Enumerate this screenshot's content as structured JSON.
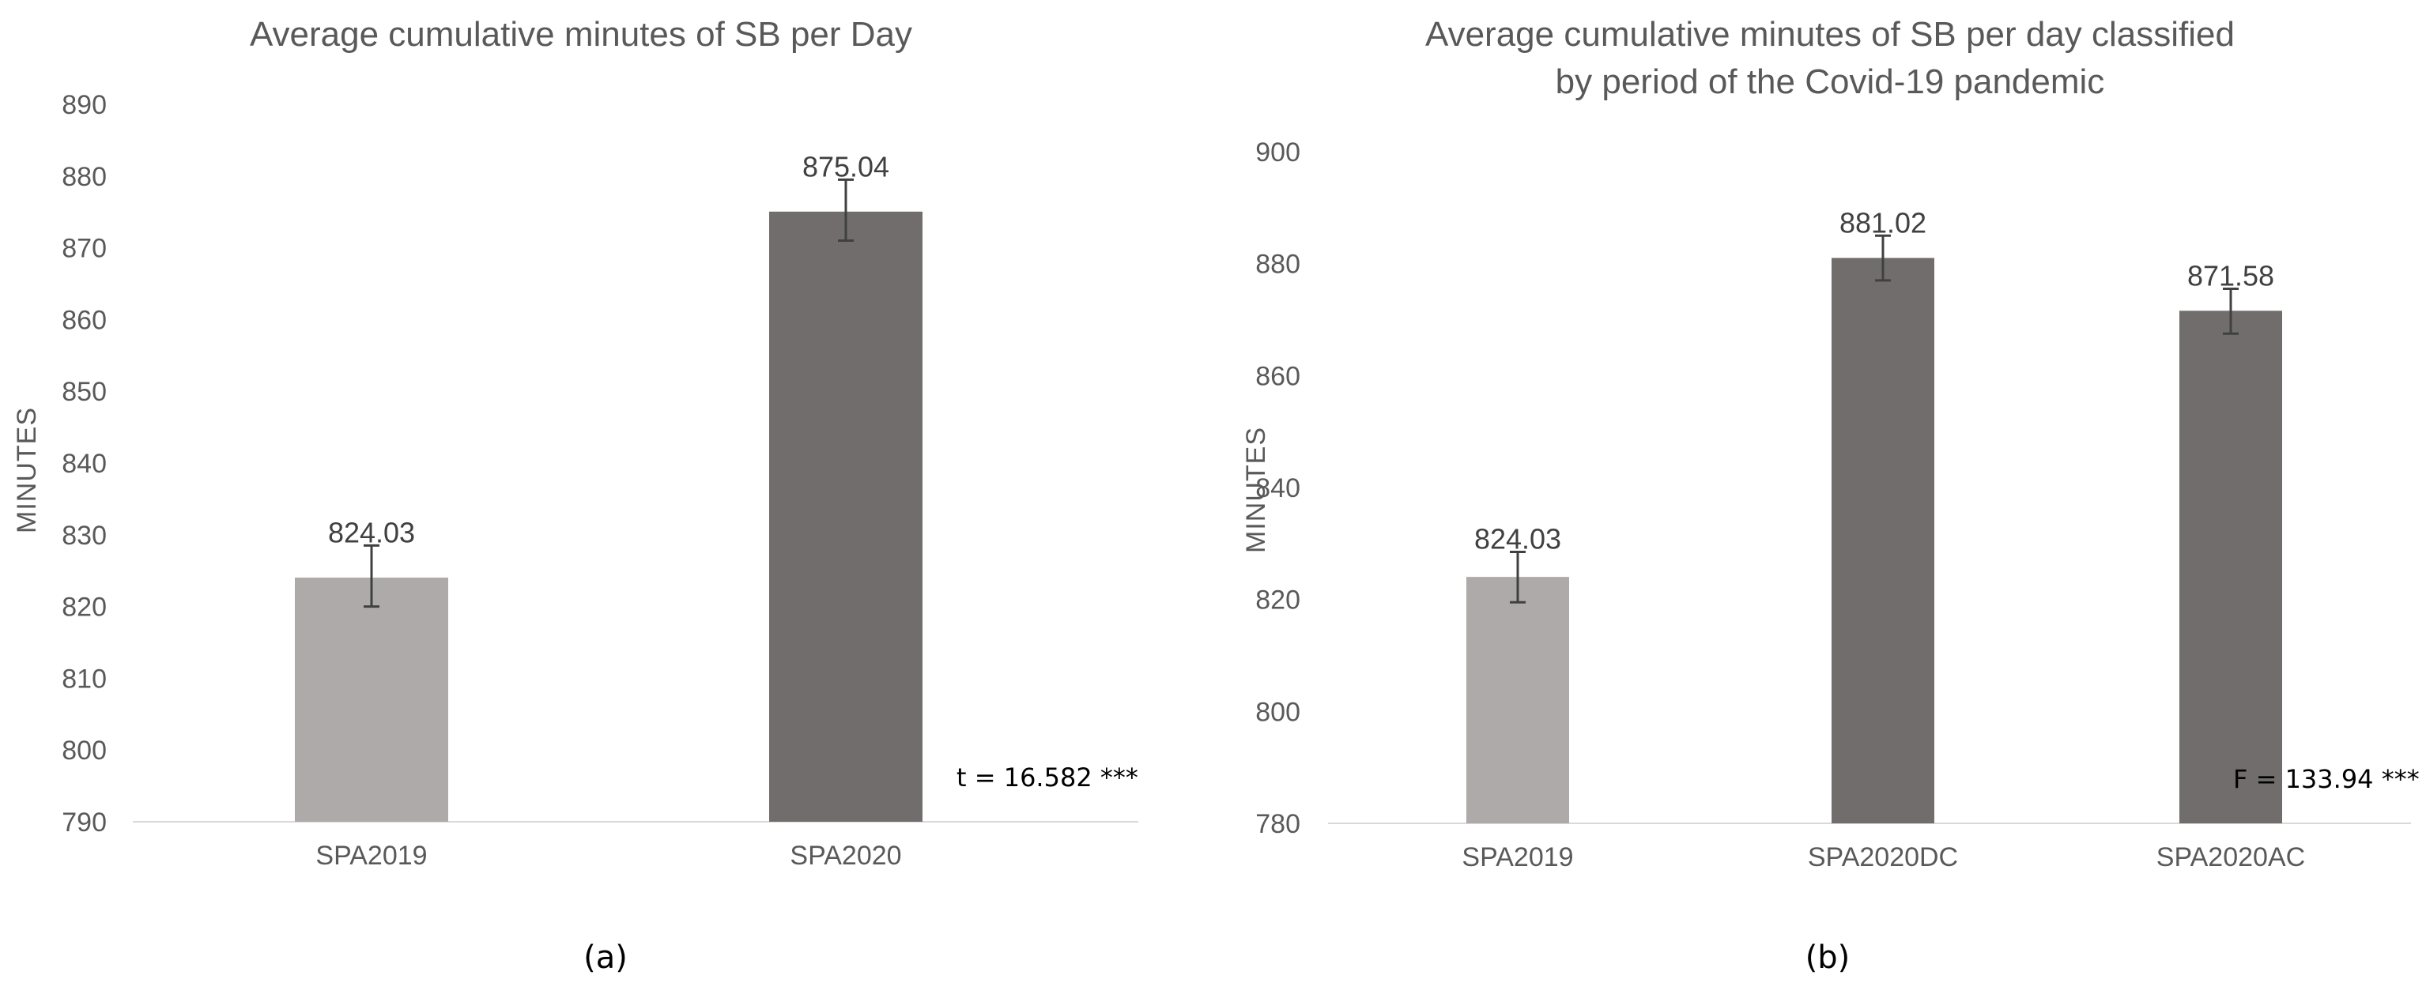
{
  "chart_data": [
    {
      "type": "bar",
      "title": "Average cumulative minutes of SB per Day",
      "ylabel": "MINUTES",
      "xlabel": "",
      "ylim": [
        790,
        890
      ],
      "yticks": [
        790,
        800,
        810,
        820,
        830,
        840,
        850,
        860,
        870,
        880,
        890
      ],
      "categories": [
        "SPA2019",
        "SPA2020"
      ],
      "values": [
        824.03,
        875.04
      ],
      "value_labels": [
        "824.03",
        "875.04"
      ],
      "error_low": [
        820.0,
        871.0
      ],
      "error_high": [
        828.5,
        879.5
      ],
      "bar_colors": [
        "#aeaaaa",
        "#716d6c"
      ],
      "annotation": "t = 16.582 ***",
      "caption": "(a)",
      "grid": false
    },
    {
      "type": "bar",
      "title": [
        "Average cumulative minutes of SB per day classified",
        "by period of the Covid-19 pandemic"
      ],
      "ylabel": "MINUTES",
      "xlabel": "",
      "ylim": [
        780,
        900
      ],
      "yticks": [
        780,
        800,
        820,
        840,
        860,
        880,
        900
      ],
      "categories": [
        "SPA2019",
        "SPA2020DC",
        "SPA2020AC"
      ],
      "values": [
        824.03,
        881.02,
        871.58
      ],
      "value_labels": [
        "824.03",
        "881.02",
        "871.58"
      ],
      "error_low": [
        819.5,
        877.0,
        867.5
      ],
      "error_high": [
        828.5,
        885.0,
        875.5
      ],
      "bar_colors": [
        "#aeaaaa",
        "#716d6c",
        "#716d6c"
      ],
      "annotation": "F = 133.94 ***",
      "caption": "(b)",
      "grid": false
    }
  ]
}
